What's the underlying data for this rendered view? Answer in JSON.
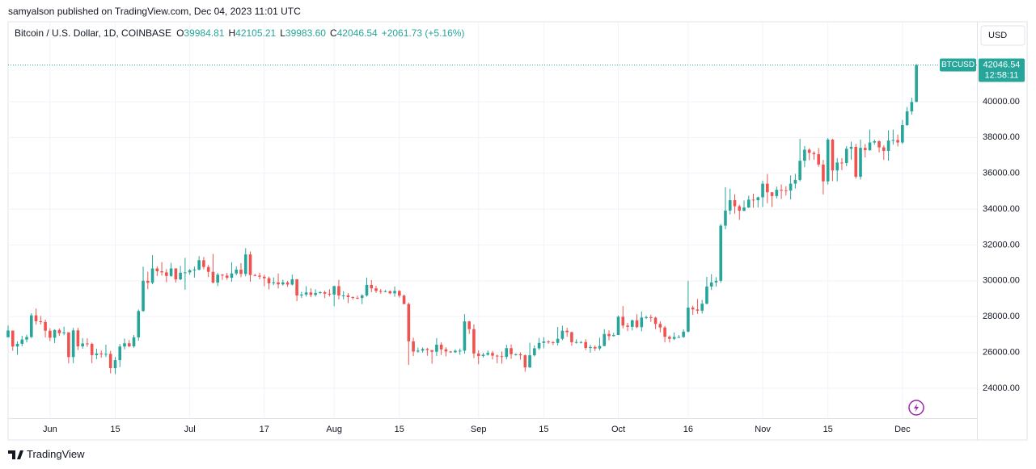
{
  "header": {
    "publisher_note": "samyalson published on TradingView.com, Dec 04, 2023 11:01 UTC"
  },
  "chart_data": {
    "type": "candlestick",
    "symbol_title": "Bitcoin / U.S. Dollar, 1D, COINBASE",
    "ohlc_legend": [
      {
        "label": "O",
        "value": "39984.81"
      },
      {
        "label": "H",
        "value": "42105.21"
      },
      {
        "label": "L",
        "value": "39983.60"
      },
      {
        "label": "C",
        "value": "42046.54"
      }
    ],
    "change": "+2061.73 (+5.16%)",
    "currency": "USD",
    "last_price_label": "42046.54",
    "countdown": "12:58:11",
    "x": [
      "2023-05-23",
      "2023-05-24",
      "2023-05-25",
      "2023-05-26",
      "2023-05-27",
      "2023-05-28",
      "2023-05-29",
      "2023-05-30",
      "2023-05-31",
      "2023-06-01",
      "2023-06-02",
      "2023-06-03",
      "2023-06-04",
      "2023-06-05",
      "2023-06-06",
      "2023-06-07",
      "2023-06-08",
      "2023-06-09",
      "2023-06-10",
      "2023-06-11",
      "2023-06-12",
      "2023-06-13",
      "2023-06-14",
      "2023-06-15",
      "2023-06-16",
      "2023-06-17",
      "2023-06-18",
      "2023-06-19",
      "2023-06-20",
      "2023-06-21",
      "2023-06-22",
      "2023-06-23",
      "2023-06-24",
      "2023-06-25",
      "2023-06-26",
      "2023-06-27",
      "2023-06-28",
      "2023-06-29",
      "2023-06-30",
      "2023-07-01",
      "2023-07-02",
      "2023-07-03",
      "2023-07-04",
      "2023-07-05",
      "2023-07-06",
      "2023-07-07",
      "2023-07-08",
      "2023-07-09",
      "2023-07-10",
      "2023-07-11",
      "2023-07-12",
      "2023-07-13",
      "2023-07-14",
      "2023-07-15",
      "2023-07-16",
      "2023-07-17",
      "2023-07-18",
      "2023-07-19",
      "2023-07-20",
      "2023-07-21",
      "2023-07-22",
      "2023-07-23",
      "2023-07-24",
      "2023-07-25",
      "2023-07-26",
      "2023-07-27",
      "2023-07-28",
      "2023-07-29",
      "2023-07-30",
      "2023-07-31",
      "2023-08-01",
      "2023-08-02",
      "2023-08-03",
      "2023-08-04",
      "2023-08-05",
      "2023-08-06",
      "2023-08-07",
      "2023-08-08",
      "2023-08-09",
      "2023-08-10",
      "2023-08-11",
      "2023-08-12",
      "2023-08-13",
      "2023-08-14",
      "2023-08-15",
      "2023-08-16",
      "2023-08-17",
      "2023-08-18",
      "2023-08-19",
      "2023-08-20",
      "2023-08-21",
      "2023-08-22",
      "2023-08-23",
      "2023-08-24",
      "2023-08-25",
      "2023-08-26",
      "2023-08-27",
      "2023-08-28",
      "2023-08-29",
      "2023-08-30",
      "2023-08-31",
      "2023-09-01",
      "2023-09-02",
      "2023-09-03",
      "2023-09-04",
      "2023-09-05",
      "2023-09-06",
      "2023-09-07",
      "2023-09-08",
      "2023-09-09",
      "2023-09-10",
      "2023-09-11",
      "2023-09-12",
      "2023-09-13",
      "2023-09-14",
      "2023-09-15",
      "2023-09-16",
      "2023-09-17",
      "2023-09-18",
      "2023-09-19",
      "2023-09-20",
      "2023-09-21",
      "2023-09-22",
      "2023-09-23",
      "2023-09-24",
      "2023-09-25",
      "2023-09-26",
      "2023-09-27",
      "2023-09-28",
      "2023-09-29",
      "2023-09-30",
      "2023-10-01",
      "2023-10-02",
      "2023-10-03",
      "2023-10-04",
      "2023-10-05",
      "2023-10-06",
      "2023-10-07",
      "2023-10-08",
      "2023-10-09",
      "2023-10-10",
      "2023-10-11",
      "2023-10-12",
      "2023-10-13",
      "2023-10-14",
      "2023-10-15",
      "2023-10-16",
      "2023-10-17",
      "2023-10-18",
      "2023-10-19",
      "2023-10-20",
      "2023-10-21",
      "2023-10-22",
      "2023-10-23",
      "2023-10-24",
      "2023-10-25",
      "2023-10-26",
      "2023-10-27",
      "2023-10-28",
      "2023-10-29",
      "2023-10-30",
      "2023-10-31",
      "2023-11-01",
      "2023-11-02",
      "2023-11-03",
      "2023-11-04",
      "2023-11-05",
      "2023-11-06",
      "2023-11-07",
      "2023-11-08",
      "2023-11-09",
      "2023-11-10",
      "2023-11-11",
      "2023-11-12",
      "2023-11-13",
      "2023-11-14",
      "2023-11-15",
      "2023-11-16",
      "2023-11-17",
      "2023-11-18",
      "2023-11-19",
      "2023-11-20",
      "2023-11-21",
      "2023-11-22",
      "2023-11-23",
      "2023-11-24",
      "2023-11-25",
      "2023-11-26",
      "2023-11-27",
      "2023-11-28",
      "2023-11-29",
      "2023-11-30",
      "2023-12-01",
      "2023-12-02",
      "2023-12-03",
      "2023-12-04"
    ],
    "series": [
      {
        "name": "BTCUSD",
        "up_color": "#26a69a",
        "down_color": "#ef5350",
        "open": [
          26850,
          27220,
          26330,
          26480,
          26720,
          26860,
          28070,
          27740,
          27700,
          27210,
          26820,
          27250,
          27070,
          27120,
          25740,
          27230,
          26340,
          26500,
          26480,
          25850,
          25940,
          25900,
          25920,
          25120,
          25570,
          26330,
          26510,
          26340,
          26840,
          28310,
          30000,
          29890,
          30690,
          30530,
          30470,
          30270,
          30690,
          30080,
          30450,
          30470,
          30590,
          30620,
          31150,
          30770,
          30500,
          29900,
          30340,
          30290,
          30170,
          30410,
          30620,
          30380,
          31470,
          30320,
          30290,
          30230,
          30140,
          29860,
          29910,
          29800,
          29910,
          29790,
          30080,
          29180,
          29230,
          29350,
          29210,
          29320,
          29360,
          29280,
          29230,
          29700,
          29180,
          29180,
          29090,
          29050,
          29040,
          29180,
          29770,
          29580,
          29430,
          29400,
          29420,
          29300,
          29430,
          29170,
          28700,
          26620,
          26050,
          26100,
          26190,
          26130,
          26040,
          26430,
          26170,
          26050,
          26010,
          26090,
          26100,
          27730,
          27300,
          25940,
          25800,
          25870,
          25970,
          25820,
          25790,
          25750,
          26240,
          25900,
          25900,
          25840,
          25160,
          25840,
          26230,
          26530,
          26610,
          26570,
          26530,
          26760,
          27210,
          27130,
          26570,
          26580,
          26580,
          26250,
          26300,
          26220,
          26360,
          27030,
          26910,
          26970,
          27990,
          27500,
          27430,
          27790,
          27410,
          27950,
          27970,
          27940,
          27590,
          27390,
          26870,
          26760,
          26860,
          26860,
          27160,
          28500,
          28400,
          28330,
          28720,
          29680,
          29910,
          30000,
          33080,
          33920,
          34500,
          34160,
          33910,
          34090,
          34530,
          34500,
          34660,
          35420,
          34940,
          34730,
          35080,
          35050,
          35040,
          35420,
          35630,
          36700,
          37320,
          37140,
          37070,
          36490,
          35550,
          37880,
          36160,
          36600,
          36570,
          37370,
          37480,
          35810,
          37420,
          37290,
          37720,
          37790,
          37450,
          37250,
          37830,
          37860,
          37720,
          38690,
          39460,
          39984.81
        ],
        "high": [
          27500,
          27220,
          26620,
          26930,
          26990,
          28190,
          28450,
          28040,
          27830,
          27350,
          27300,
          27340,
          27440,
          27130,
          27370,
          27370,
          26800,
          26790,
          26540,
          26210,
          26100,
          26430,
          26090,
          25740,
          26470,
          26770,
          26690,
          26970,
          28400,
          30790,
          30500,
          31430,
          30800,
          31040,
          30650,
          31000,
          30700,
          30830,
          31280,
          30650,
          30790,
          31380,
          31330,
          30880,
          31500,
          30440,
          30380,
          30440,
          31040,
          30800,
          30990,
          31820,
          31640,
          30390,
          30450,
          30340,
          30230,
          30190,
          30410,
          30060,
          29990,
          30340,
          30100,
          29380,
          29700,
          29580,
          29530,
          29420,
          29450,
          29530,
          29730,
          30050,
          29420,
          29320,
          29130,
          29170,
          29250,
          30180,
          30040,
          29720,
          29540,
          29480,
          29460,
          29680,
          29480,
          29230,
          28780,
          26820,
          26270,
          26280,
          26260,
          26130,
          26800,
          26560,
          26290,
          26080,
          26170,
          26220,
          28140,
          27760,
          27570,
          26120,
          25970,
          26110,
          26080,
          25880,
          26050,
          26430,
          26440,
          25940,
          26000,
          25880,
          26540,
          26390,
          26810,
          26850,
          26680,
          26630,
          27420,
          27490,
          27380,
          27160,
          26730,
          26630,
          26740,
          26420,
          26390,
          26820,
          27300,
          27230,
          27090,
          28060,
          28590,
          27650,
          27840,
          28130,
          28290,
          28050,
          28110,
          27990,
          27740,
          27480,
          26950,
          27110,
          26970,
          27290,
          30000,
          28610,
          28990,
          28930,
          30220,
          30370,
          30200,
          33170,
          35220,
          35140,
          34830,
          34250,
          34480,
          34750,
          34860,
          34700,
          35590,
          35960,
          34950,
          35260,
          35380,
          35280,
          35880,
          35970,
          37930,
          37520,
          37400,
          37230,
          37410,
          36750,
          37970,
          37930,
          36850,
          36850,
          37520,
          37770,
          37650,
          37880,
          37640,
          38440,
          37890,
          37840,
          37560,
          38400,
          38440,
          38170,
          38980,
          39700,
          40220,
          42105.21
        ],
        "low": [
          26830,
          26090,
          25870,
          26340,
          26560,
          26800,
          27550,
          27560,
          26840,
          26620,
          26520,
          26920,
          26960,
          25390,
          25400,
          26130,
          26210,
          26310,
          25400,
          25630,
          25710,
          25740,
          24830,
          24790,
          25180,
          26170,
          26290,
          26260,
          26660,
          28270,
          29530,
          29810,
          30270,
          30290,
          29920,
          30220,
          29900,
          30030,
          29500,
          30340,
          30180,
          30580,
          30640,
          30210,
          29850,
          29700,
          30050,
          30060,
          29950,
          30300,
          30200,
          30250,
          29940,
          30250,
          30080,
          29690,
          29520,
          29760,
          29570,
          29730,
          29660,
          29740,
          28860,
          29040,
          29120,
          29080,
          29120,
          29260,
          29030,
          29120,
          28580,
          28960,
          28960,
          28760,
          28960,
          28970,
          28700,
          29120,
          29360,
          29330,
          29280,
          29360,
          29250,
          29110,
          29060,
          28700,
          25300,
          25800,
          25980,
          25990,
          25810,
          25370,
          25800,
          25860,
          25780,
          25970,
          25970,
          25870,
          25930,
          27030,
          25680,
          25340,
          25720,
          25820,
          25610,
          25390,
          25380,
          25610,
          25650,
          25820,
          25590,
          24920,
          25140,
          25780,
          26140,
          26230,
          26480,
          26410,
          26390,
          26680,
          26870,
          26370,
          26490,
          26500,
          26130,
          25990,
          26080,
          26110,
          26340,
          26680,
          26890,
          26970,
          27340,
          27190,
          27230,
          27360,
          27180,
          27860,
          27700,
          27300,
          27120,
          26560,
          26550,
          26690,
          26810,
          26810,
          27120,
          28100,
          28150,
          28170,
          28680,
          29490,
          29680,
          29890,
          32880,
          33700,
          33750,
          33400,
          33880,
          34070,
          34080,
          34100,
          34120,
          34330,
          34120,
          34600,
          34570,
          34760,
          34540,
          35150,
          35550,
          36340,
          36730,
          36760,
          36360,
          34820,
          35370,
          35560,
          35550,
          36180,
          36400,
          36760,
          35700,
          35650,
          36890,
          37260,
          37600,
          37170,
          36750,
          36700,
          37600,
          37500,
          37630,
          38650,
          39280,
          39983.6
        ],
        "close": [
          27220,
          26330,
          26480,
          26720,
          26860,
          28070,
          27740,
          27700,
          27210,
          26820,
          27250,
          27070,
          27120,
          25740,
          27230,
          26340,
          26500,
          26480,
          25850,
          25940,
          25900,
          25920,
          25120,
          25570,
          26330,
          26510,
          26340,
          26840,
          28310,
          30000,
          29890,
          30690,
          30530,
          30470,
          30270,
          30690,
          30080,
          30450,
          30470,
          30590,
          30620,
          31150,
          30770,
          30500,
          29900,
          30340,
          30290,
          30170,
          30410,
          30620,
          30380,
          31470,
          30320,
          30290,
          30230,
          30140,
          29860,
          29910,
          29800,
          29910,
          29790,
          30080,
          29180,
          29230,
          29350,
          29210,
          29320,
          29360,
          29280,
          29230,
          29700,
          29180,
          29180,
          29090,
          29050,
          29040,
          29180,
          29770,
          29580,
          29430,
          29400,
          29420,
          29300,
          29430,
          29170,
          28700,
          26620,
          26050,
          26100,
          26190,
          26130,
          26040,
          26430,
          26170,
          26050,
          26010,
          26090,
          26100,
          27730,
          27300,
          25940,
          25800,
          25870,
          25970,
          25820,
          25790,
          25750,
          26240,
          25900,
          25900,
          25840,
          25160,
          25840,
          26230,
          26530,
          26610,
          26570,
          26530,
          26760,
          27210,
          27130,
          26570,
          26580,
          26580,
          26250,
          26300,
          26220,
          26360,
          27030,
          26910,
          26970,
          27990,
          27500,
          27430,
          27790,
          27410,
          27950,
          27970,
          27940,
          27590,
          27390,
          26870,
          26760,
          26860,
          26860,
          27160,
          28500,
          28400,
          28330,
          28720,
          29680,
          29910,
          30000,
          33080,
          33920,
          34500,
          34160,
          33910,
          34090,
          34530,
          34500,
          34660,
          35420,
          34940,
          34730,
          35080,
          35050,
          35040,
          35420,
          35630,
          36700,
          37320,
          37140,
          37070,
          36490,
          35550,
          37880,
          36160,
          36600,
          36570,
          37370,
          37480,
          35810,
          37420,
          37290,
          37720,
          37790,
          37450,
          37250,
          37830,
          37860,
          37720,
          38690,
          39460,
          39980,
          42046.54
        ]
      }
    ],
    "xlim": [
      "2023-05-23",
      "2023-12-17"
    ],
    "xticks": [
      {
        "value": "2023-06-01",
        "label": "Jun"
      },
      {
        "value": "2023-06-15",
        "label": "15"
      },
      {
        "value": "2023-07-01",
        "label": "Jul"
      },
      {
        "value": "2023-07-17",
        "label": "17"
      },
      {
        "value": "2023-08-01",
        "label": "Aug"
      },
      {
        "value": "2023-08-15",
        "label": "15"
      },
      {
        "value": "2023-09-01",
        "label": "Sep"
      },
      {
        "value": "2023-09-15",
        "label": "15"
      },
      {
        "value": "2023-10-01",
        "label": "Oct"
      },
      {
        "value": "2023-10-16",
        "label": "16"
      },
      {
        "value": "2023-11-01",
        "label": "Nov"
      },
      {
        "value": "2023-11-15",
        "label": "15"
      },
      {
        "value": "2023-12-01",
        "label": "Dec"
      }
    ],
    "ylim": [
      22330,
      44460
    ],
    "yticks": [
      {
        "value": 24000,
        "label": "24000.00"
      },
      {
        "value": 26000,
        "label": "26000.00"
      },
      {
        "value": 28000,
        "label": "28000.00"
      },
      {
        "value": 30000,
        "label": "30000.00"
      },
      {
        "value": 32000,
        "label": "32000.00"
      },
      {
        "value": 34000,
        "label": "34000.00"
      },
      {
        "value": 36000,
        "label": "36000.00"
      },
      {
        "value": 38000,
        "label": "38000.00"
      },
      {
        "value": 40000,
        "label": "40000.00"
      }
    ],
    "grid": true
  },
  "footer": {
    "brand": "TradingView"
  }
}
